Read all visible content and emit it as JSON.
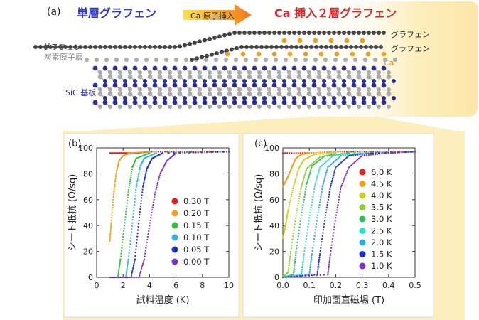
{
  "panel_a": {
    "label": "(a)",
    "left_title": "単層グラフェン",
    "arrow_label": "Ca 原子挿入",
    "right_title": "Ca 挿入２層グラフェン",
    "graphene_left": "グラフェン",
    "buffer_layer": "炭素原子層",
    "substrate": "SiC 基板",
    "graphene_top_right": "グラフェン",
    "graphene_bottom_right": "グラフェン",
    "ca_label": "Ca",
    "colors": {
      "left_title": "#2a35d6",
      "right_title": "#e0262a",
      "panel_bg": "#fdeebd",
      "carbon": "#444444",
      "ca": "#f0a020",
      "si": "#2b2f8f",
      "sic_c": "#aaaaaa"
    }
  },
  "chart_data": [
    {
      "type": "scatter",
      "panel_label": "(b)",
      "xlabel": "試料温度 (K)",
      "ylabel": "シート抵抗 (Ω/sq)",
      "xlim": [
        0,
        10
      ],
      "ylim": [
        0,
        100
      ],
      "x_ticks": [
        0,
        2,
        4,
        6,
        8,
        10
      ],
      "y_ticks": [
        0,
        20,
        40,
        60,
        80,
        100
      ],
      "legend_position": "center-right",
      "series": [
        {
          "name": "0.30 T",
          "color": "#e0201c",
          "x": [
            1.0,
            2.0,
            3.0,
            4.0,
            6.0,
            8.0,
            10.0
          ],
          "y": [
            96,
            96,
            96,
            97,
            97,
            97,
            97
          ]
        },
        {
          "name": "0.20 T",
          "color": "#f5a21a",
          "x": [
            1.0,
            1.1,
            1.3,
            1.5,
            1.7,
            2.0,
            2.5,
            4.0,
            10.0
          ],
          "y": [
            28,
            42,
            66,
            82,
            90,
            94,
            96,
            97,
            97
          ]
        },
        {
          "name": "0.15 T",
          "color": "#2fbf3a",
          "x": [
            1.0,
            1.6,
            1.8,
            2.1,
            2.4,
            2.7,
            3.0,
            4.0,
            10.0
          ],
          "y": [
            0,
            0,
            14,
            40,
            66,
            85,
            92,
            96,
            97
          ]
        },
        {
          "name": "0.10 T",
          "color": "#28b8e0",
          "x": [
            1.0,
            2.2,
            2.4,
            2.7,
            3.0,
            3.3,
            3.6,
            4.5,
            10.0
          ],
          "y": [
            0,
            0,
            14,
            42,
            70,
            86,
            92,
            96,
            97
          ]
        },
        {
          "name": "0.05 T",
          "color": "#1a2fd0",
          "x": [
            1.0,
            2.6,
            2.9,
            3.2,
            3.5,
            3.8,
            4.2,
            5.0,
            10.0
          ],
          "y": [
            0,
            0,
            14,
            44,
            70,
            84,
            92,
            96,
            97
          ]
        },
        {
          "name": "0.00 T",
          "color": "#7b2fc8",
          "x": [
            1.0,
            3.2,
            3.6,
            4.0,
            4.4,
            4.8,
            5.3,
            6.0,
            10.0
          ],
          "y": [
            0,
            0,
            14,
            40,
            64,
            80,
            90,
            96,
            97
          ]
        }
      ]
    },
    {
      "type": "scatter",
      "panel_label": "(c)",
      "xlabel": "印加面直磁場 (T)",
      "ylabel": "シート抵抗 (Ω/sq)",
      "xlim": [
        0,
        0.5
      ],
      "ylim": [
        0,
        100
      ],
      "x_ticks": [
        0.0,
        0.1,
        0.2,
        0.3,
        0.4,
        0.5
      ],
      "y_ticks": [
        0,
        20,
        40,
        60,
        80,
        100
      ],
      "legend_position": "right",
      "series": [
        {
          "name": "6.0 K",
          "color": "#e0201c",
          "x": [
            0.0,
            0.1,
            0.2,
            0.3,
            0.4,
            0.5
          ],
          "y": [
            96,
            96,
            97,
            97,
            97,
            97
          ]
        },
        {
          "name": "4.5 K",
          "color": "#f5a21a",
          "x": [
            0.0,
            0.01,
            0.02,
            0.03,
            0.04,
            0.05,
            0.07,
            0.1,
            0.2,
            0.5
          ],
          "y": [
            70,
            74,
            78,
            83,
            88,
            92,
            95,
            96,
            97,
            97
          ]
        },
        {
          "name": "4.0 K",
          "color": "#c8d21a",
          "x": [
            0.0,
            0.01,
            0.02,
            0.04,
            0.06,
            0.08,
            0.12,
            0.2,
            0.5
          ],
          "y": [
            30,
            40,
            52,
            70,
            84,
            91,
            95,
            96,
            97
          ]
        },
        {
          "name": "3.5 K",
          "color": "#8cd42a",
          "x": [
            0.0,
            0.02,
            0.03,
            0.05,
            0.07,
            0.09,
            0.14,
            0.25,
            0.5
          ],
          "y": [
            0,
            4,
            20,
            48,
            70,
            84,
            93,
            96,
            97
          ]
        },
        {
          "name": "3.0 K",
          "color": "#2fbf5a",
          "x": [
            0.0,
            0.04,
            0.05,
            0.07,
            0.09,
            0.11,
            0.16,
            0.25,
            0.5
          ],
          "y": [
            0,
            2,
            20,
            48,
            72,
            86,
            94,
            96,
            97
          ]
        },
        {
          "name": "2.5 K",
          "color": "#30e0c0",
          "x": [
            0.0,
            0.07,
            0.08,
            0.1,
            0.12,
            0.14,
            0.19,
            0.3,
            0.5
          ],
          "y": [
            0,
            2,
            18,
            46,
            70,
            85,
            94,
            96,
            97
          ]
        },
        {
          "name": "2.0 K",
          "color": "#28a8e8",
          "x": [
            0.0,
            0.1,
            0.11,
            0.13,
            0.15,
            0.17,
            0.22,
            0.32,
            0.5
          ],
          "y": [
            0,
            2,
            18,
            46,
            70,
            85,
            94,
            96,
            97
          ]
        },
        {
          "name": "1.5 K",
          "color": "#1a2fd0",
          "x": [
            0.0,
            0.13,
            0.14,
            0.16,
            0.18,
            0.2,
            0.25,
            0.35,
            0.5
          ],
          "y": [
            0,
            2,
            18,
            46,
            70,
            85,
            94,
            96,
            97
          ]
        },
        {
          "name": "1.0 K",
          "color": "#7b2fc8",
          "x": [
            0.0,
            0.17,
            0.18,
            0.2,
            0.22,
            0.25,
            0.3,
            0.4,
            0.5
          ],
          "y": [
            0,
            2,
            18,
            46,
            70,
            85,
            94,
            96,
            97
          ]
        }
      ]
    }
  ]
}
